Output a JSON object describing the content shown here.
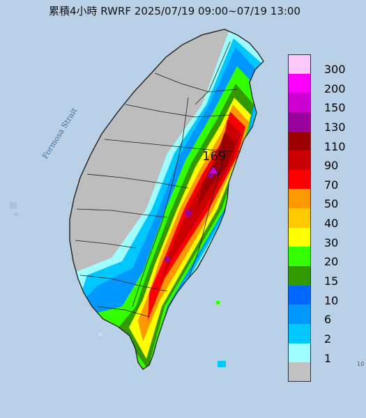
{
  "title": "累積4小時 RWRF 2025/07/19 09:00~07/19 13:00",
  "strait_label": "Formosa Strait",
  "peak_label": "169",
  "edge_label": "10",
  "colors": {
    "sea": "#b9d0e6",
    "land": "#bdbdbd",
    "border": "#222222"
  },
  "legend": [
    {
      "label": "300",
      "color": "#fdc8fa"
    },
    {
      "label": "200",
      "color": "#fb00fd"
    },
    {
      "label": "150",
      "color": "#cc00d0"
    },
    {
      "label": "130",
      "color": "#9a009c"
    },
    {
      "label": "110",
      "color": "#9c0000"
    },
    {
      "label": "90",
      "color": "#cb0000"
    },
    {
      "label": "70",
      "color": "#fb0000"
    },
    {
      "label": "50",
      "color": "#fe9800"
    },
    {
      "label": "40",
      "color": "#ffca00"
    },
    {
      "label": "30",
      "color": "#fefe00"
    },
    {
      "label": "20",
      "color": "#33ff00"
    },
    {
      "label": "15",
      "color": "#339900"
    },
    {
      "label": "10",
      "color": "#0068fe"
    },
    {
      "label": "6",
      "color": "#0097ff"
    },
    {
      "label": "2",
      "color": "#00c8ff"
    },
    {
      "label": "1",
      "color": "#9efdff"
    },
    {
      "label": "",
      "color": "#c1c1c1"
    }
  ]
}
